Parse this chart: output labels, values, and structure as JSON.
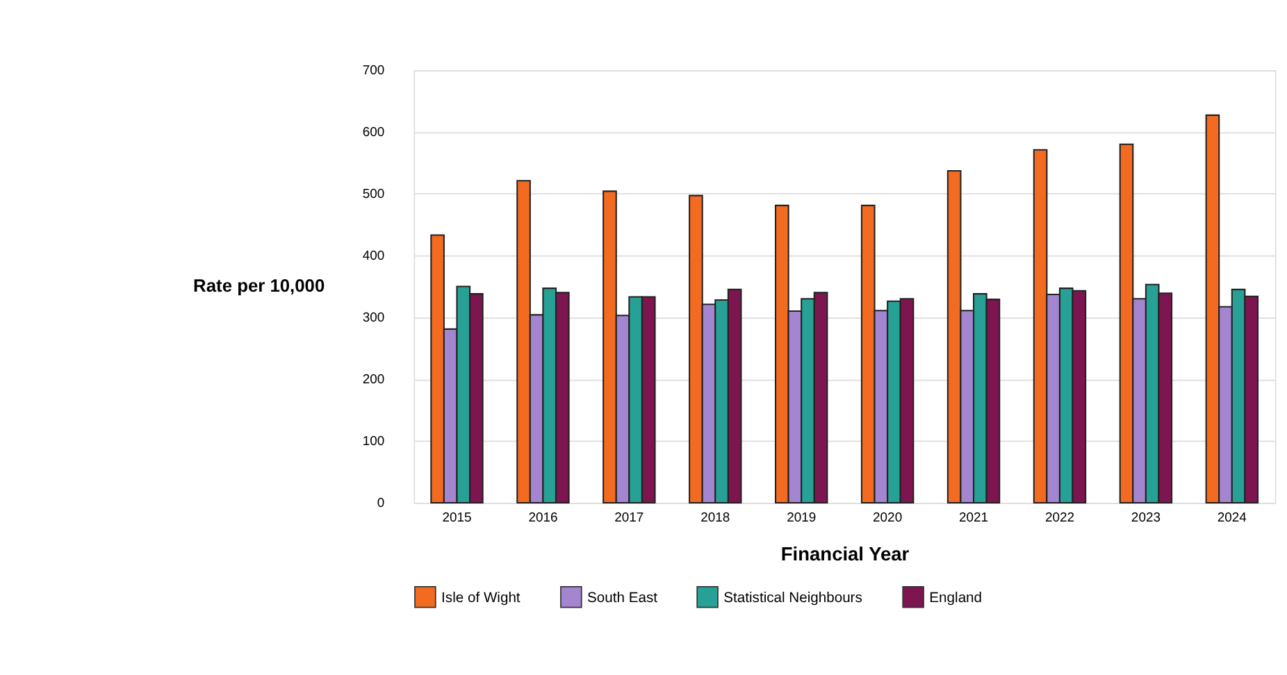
{
  "chart_data": {
    "type": "bar",
    "xlabel": "Financial Year",
    "ylabel": "Rate per 10,000",
    "categories": [
      "2015",
      "2016",
      "2017",
      "2018",
      "2019",
      "2020",
      "2021",
      "2022",
      "2023",
      "2024"
    ],
    "series": [
      {
        "name": "Isle of Wight",
        "color": "#f26b21",
        "values": [
          433,
          521,
          504,
          497,
          481,
          481,
          537,
          571,
          580,
          627
        ]
      },
      {
        "name": "South East",
        "color": "#a486d0",
        "values": [
          281,
          304,
          303,
          321,
          310,
          311,
          311,
          337,
          330,
          317
        ]
      },
      {
        "name": "Statistical Neighbours",
        "color": "#27a195",
        "values": [
          350,
          347,
          333,
          328,
          330,
          326,
          338,
          347,
          353,
          345
        ]
      },
      {
        "name": "England",
        "color": "#7d1550",
        "values": [
          338,
          340,
          333,
          345,
          340,
          330,
          329,
          343,
          339,
          334
        ]
      }
    ],
    "ylim": [
      0,
      700
    ],
    "yticks": [
      0,
      100,
      200,
      300,
      400,
      500,
      600,
      700
    ],
    "grid": "y",
    "legend": "bottom"
  }
}
